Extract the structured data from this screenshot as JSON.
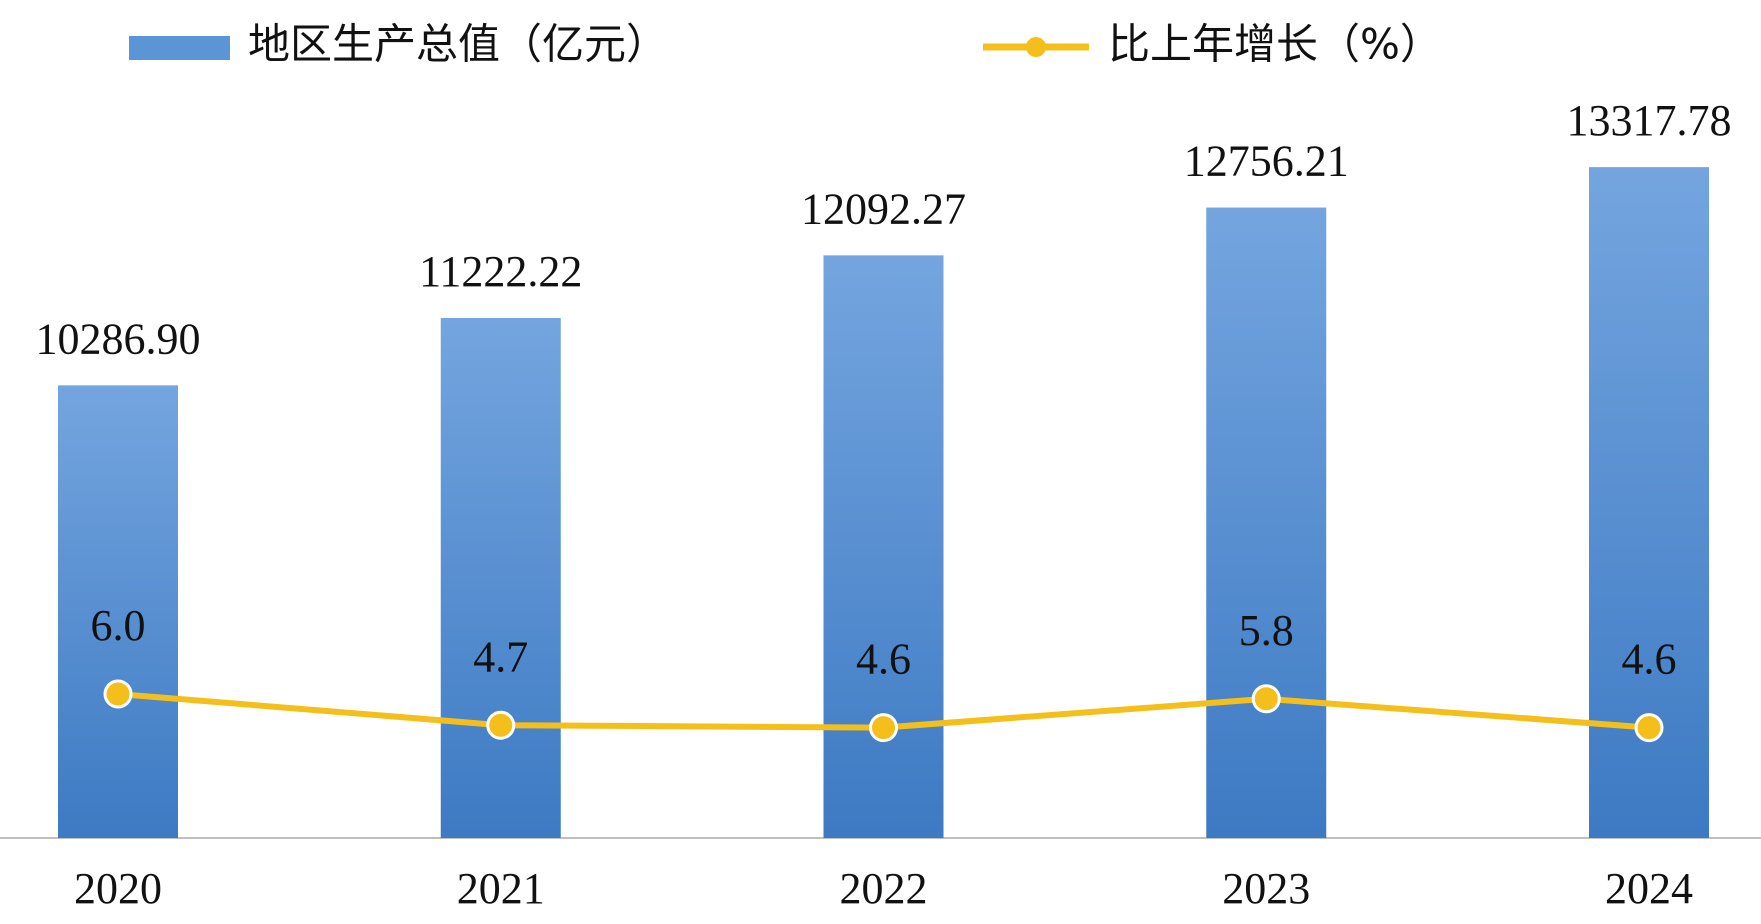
{
  "chart_data": {
    "type": "bar-line",
    "categories": [
      "2020",
      "2021",
      "2022",
      "2023",
      "2024"
    ],
    "series": [
      {
        "name": "地区生产总值（亿元）",
        "type": "bar",
        "color": "#5b95d6",
        "values": [
          10286.9,
          11222.22,
          12092.27,
          12756.21,
          13317.78
        ],
        "value_labels": [
          "10286.90",
          "11222.22",
          "12092.27",
          "12756.21",
          "13317.78"
        ]
      },
      {
        "name": "比上年增长（%）",
        "type": "line",
        "axis": "y2",
        "color": "#f5bf1b",
        "values": [
          6.0,
          4.7,
          4.6,
          5.8,
          4.6
        ],
        "value_labels": [
          "6.0",
          "4.7",
          "4.6",
          "5.8",
          "4.6"
        ]
      }
    ],
    "ylim": [
      4000,
      14000
    ],
    "y2lim": [
      0,
      30
    ]
  }
}
